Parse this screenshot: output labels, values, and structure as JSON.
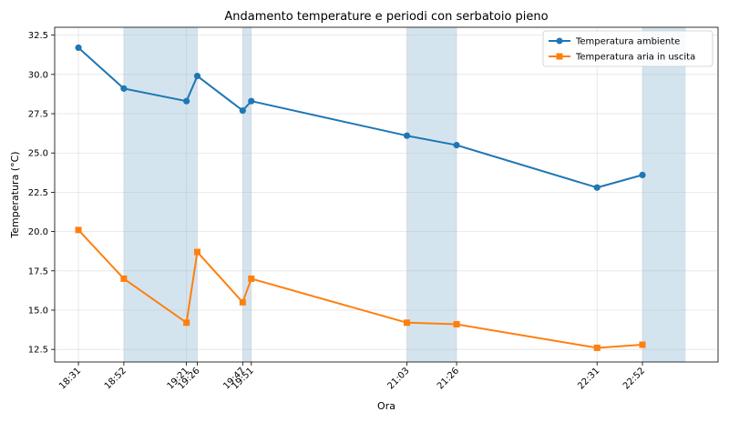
{
  "chart_data": {
    "type": "line",
    "title": "Andamento temperature e periodi con serbatoio pieno",
    "xlabel": "Ora",
    "ylabel": "Temperatura (°C)",
    "ylim": [
      11.7,
      33.0
    ],
    "xlim": [
      "18:20",
      "23:27"
    ],
    "x": [
      "18:31",
      "18:52",
      "19:21",
      "19:26",
      "19:47",
      "19:51",
      "21:03",
      "21:26",
      "22:31",
      "22:52"
    ],
    "series": [
      {
        "name": "Temperatura ambiente",
        "color": "#1f77b4",
        "marker": "circle",
        "values": [
          31.7,
          29.1,
          28.3,
          29.9,
          27.7,
          28.3,
          26.1,
          25.5,
          22.8,
          23.6
        ]
      },
      {
        "name": "Temperatura aria in uscita",
        "color": "#ff7f0e",
        "marker": "square",
        "values": [
          20.1,
          17.0,
          14.2,
          18.7,
          15.5,
          17.0,
          14.2,
          14.1,
          12.6,
          12.8
        ]
      }
    ],
    "shaded_periods": [
      [
        "18:52",
        "19:26"
      ],
      [
        "19:47",
        "19:51"
      ],
      [
        "21:03",
        "21:26"
      ],
      [
        "22:52",
        "23:12"
      ]
    ],
    "shade_color": "#d4e4ef",
    "yticks": [
      12.5,
      15.0,
      17.5,
      20.0,
      22.5,
      25.0,
      27.5,
      30.0,
      32.5
    ],
    "ytick_labels": [
      "12.5",
      "15.0",
      "17.5",
      "20.0",
      "22.5",
      "25.0",
      "27.5",
      "30.0",
      "32.5"
    ],
    "xtick_labels": [
      "18:31",
      "18:52",
      "19:21",
      "19:26",
      "19:47",
      "19:51",
      "21:03",
      "21:26",
      "22:31",
      "22:52"
    ],
    "grid": true,
    "legend_position": "top-right"
  }
}
